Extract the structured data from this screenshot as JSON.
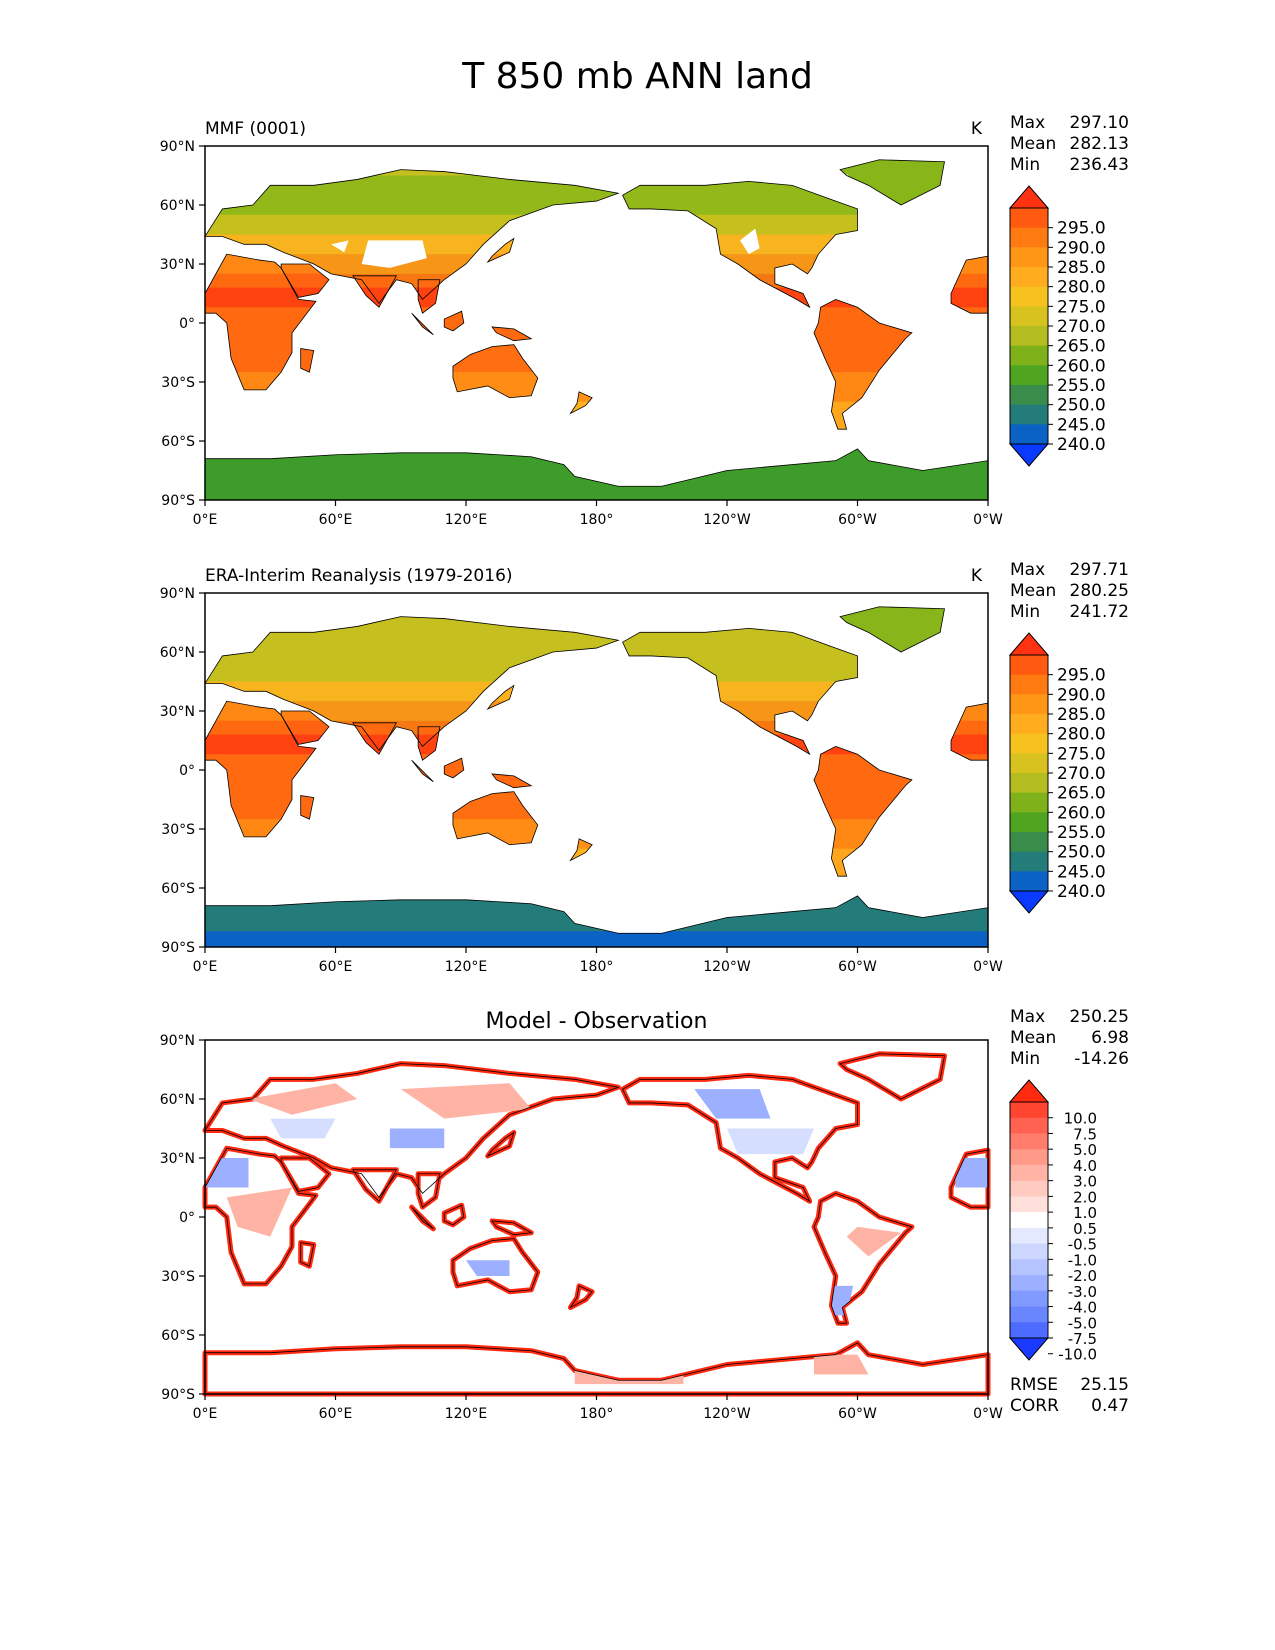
{
  "title": "T 850 mb ANN land",
  "axes": {
    "lat_ticks": [
      "90°N",
      "60°N",
      "30°N",
      "0°",
      "30°S",
      "60°S",
      "90°S"
    ],
    "lon_ticks": [
      "0°E",
      "60°E",
      "120°E",
      "180°",
      "120°W",
      "60°W",
      "0°W"
    ]
  },
  "panels": [
    {
      "id": "model",
      "title_left": "MMF (0001)",
      "title_center": "",
      "units": "K",
      "stats": [
        {
          "label": "Max",
          "value": "297.10"
        },
        {
          "label": "Mean",
          "value": "282.13"
        },
        {
          "label": "Min",
          "value": "236.43"
        }
      ],
      "colorbar": "abs"
    },
    {
      "id": "obs",
      "title_left": "ERA-Interim Reanalysis (1979-2016)",
      "title_center": "",
      "units": "K",
      "stats": [
        {
          "label": "Max",
          "value": "297.71"
        },
        {
          "label": "Mean",
          "value": "280.25"
        },
        {
          "label": "Min",
          "value": "241.72"
        }
      ],
      "colorbar": "abs"
    },
    {
      "id": "diff",
      "title_left": "",
      "title_center": "Model - Observation",
      "units": "",
      "stats": [
        {
          "label": "Max",
          "value": "250.25"
        },
        {
          "label": "Mean",
          "value": "6.98"
        },
        {
          "label": "Min",
          "value": "-14.26"
        }
      ],
      "extra_stats": [
        {
          "label": "RMSE",
          "value": "25.15"
        },
        {
          "label": "CORR",
          "value": "0.47"
        }
      ],
      "colorbar": "diff"
    }
  ],
  "colorbars": {
    "abs": {
      "labels": [
        "295.0",
        "290.0",
        "285.0",
        "280.0",
        "275.0",
        "270.0",
        "265.0",
        "260.0",
        "255.0",
        "250.0",
        "245.0",
        "240.0"
      ],
      "colors": [
        "#ff3311",
        "#ff5a10",
        "#ff7a10",
        "#ff9615",
        "#ffac1f",
        "#f7c21f",
        "#d7c21f",
        "#b3bd1f",
        "#7fb21a",
        "#4fa51f",
        "#3a8c4a",
        "#237b7a",
        "#0a62c4",
        "#0a3aff"
      ]
    },
    "diff": {
      "labels": [
        "10.0",
        "7.5",
        "5.0",
        "4.0",
        "3.0",
        "2.0",
        "1.0",
        "0.5",
        "-0.5",
        "-1.0",
        "-2.0",
        "-3.0",
        "-4.0",
        "-5.0",
        "-7.5",
        "-10.0"
      ],
      "colors": [
        "#ff2a10",
        "#ff4530",
        "#ff6250",
        "#ff7d6a",
        "#ff9a88",
        "#ffb3a5",
        "#ffcabf",
        "#ffe0da",
        "#ffffff",
        "#e4e9ff",
        "#cdd6ff",
        "#b5c3ff",
        "#9cb0ff",
        "#819aff",
        "#6a86ff",
        "#4d6bff",
        "#1a3aff"
      ]
    }
  },
  "map_colors": {
    "hot": "#ff3b11",
    "warm": "#ff6a12",
    "mid": "#ff8d15",
    "temperate": "#ffb11f",
    "cool": "#c5c01f",
    "cold": "#88b61a",
    "ice": "#3d9c2a",
    "polar": "#237b7a",
    "deep": "#0a62c4",
    "diff_red": "#ff2a10",
    "diff_pink": "#ffb3a5",
    "diff_light_red": "#ffd6cf",
    "diff_blue": "#9cb0ff",
    "diff_light_blue": "#d6deff"
  },
  "chart_data": [
    {
      "type": "heatmap",
      "title": "MMF (0001)",
      "units": "K",
      "xlim": [
        0,
        360
      ],
      "ylim": [
        -90,
        90
      ],
      "stats": {
        "max": 297.1,
        "mean": 282.13,
        "min": 236.43
      },
      "levels": [
        240,
        245,
        250,
        255,
        260,
        265,
        270,
        275,
        280,
        285,
        290,
        295
      ]
    },
    {
      "type": "heatmap",
      "title": "ERA-Interim Reanalysis (1979-2016)",
      "units": "K",
      "xlim": [
        0,
        360
      ],
      "ylim": [
        -90,
        90
      ],
      "stats": {
        "max": 297.71,
        "mean": 280.25,
        "min": 241.72
      },
      "levels": [
        240,
        245,
        250,
        255,
        260,
        265,
        270,
        275,
        280,
        285,
        290,
        295
      ]
    },
    {
      "type": "heatmap",
      "title": "Model - Observation",
      "xlim": [
        0,
        360
      ],
      "ylim": [
        -90,
        90
      ],
      "stats": {
        "max": 250.25,
        "mean": 6.98,
        "min": -14.26,
        "rmse": 25.15,
        "corr": 0.47
      },
      "levels": [
        -10.0,
        -7.5,
        -5.0,
        -4.0,
        -3.0,
        -2.0,
        -1.0,
        -0.5,
        0.5,
        1.0,
        2.0,
        3.0,
        4.0,
        5.0,
        7.5,
        10.0
      ]
    }
  ]
}
